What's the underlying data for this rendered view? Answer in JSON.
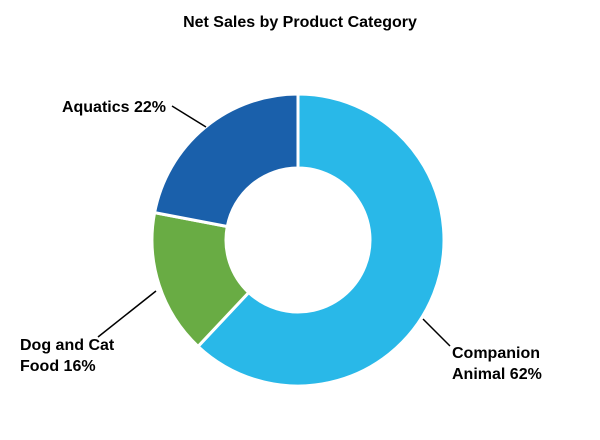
{
  "chart_data": {
    "type": "pie",
    "subtype": "donut",
    "title": "Net Sales by Product Category",
    "units": "%",
    "start_angle_deg": 0,
    "direction": "clockwise",
    "background": "#FFFFFF",
    "legend_position": "callout-labels",
    "segments": [
      {
        "id": "companion-animal",
        "label": "Companion Animal",
        "value": 62,
        "display": "Companion Animal 62%",
        "color": "#29B8E8"
      },
      {
        "id": "dog-cat-food",
        "label": "Dog and Cat Food",
        "value": 16,
        "display": "Dog and Cat Food 16%",
        "color": "#69AC44"
      },
      {
        "id": "aquatics",
        "label": "Aquatics",
        "value": 22,
        "display": "Aquatics 22%",
        "color": "#1A60AB"
      }
    ]
  }
}
